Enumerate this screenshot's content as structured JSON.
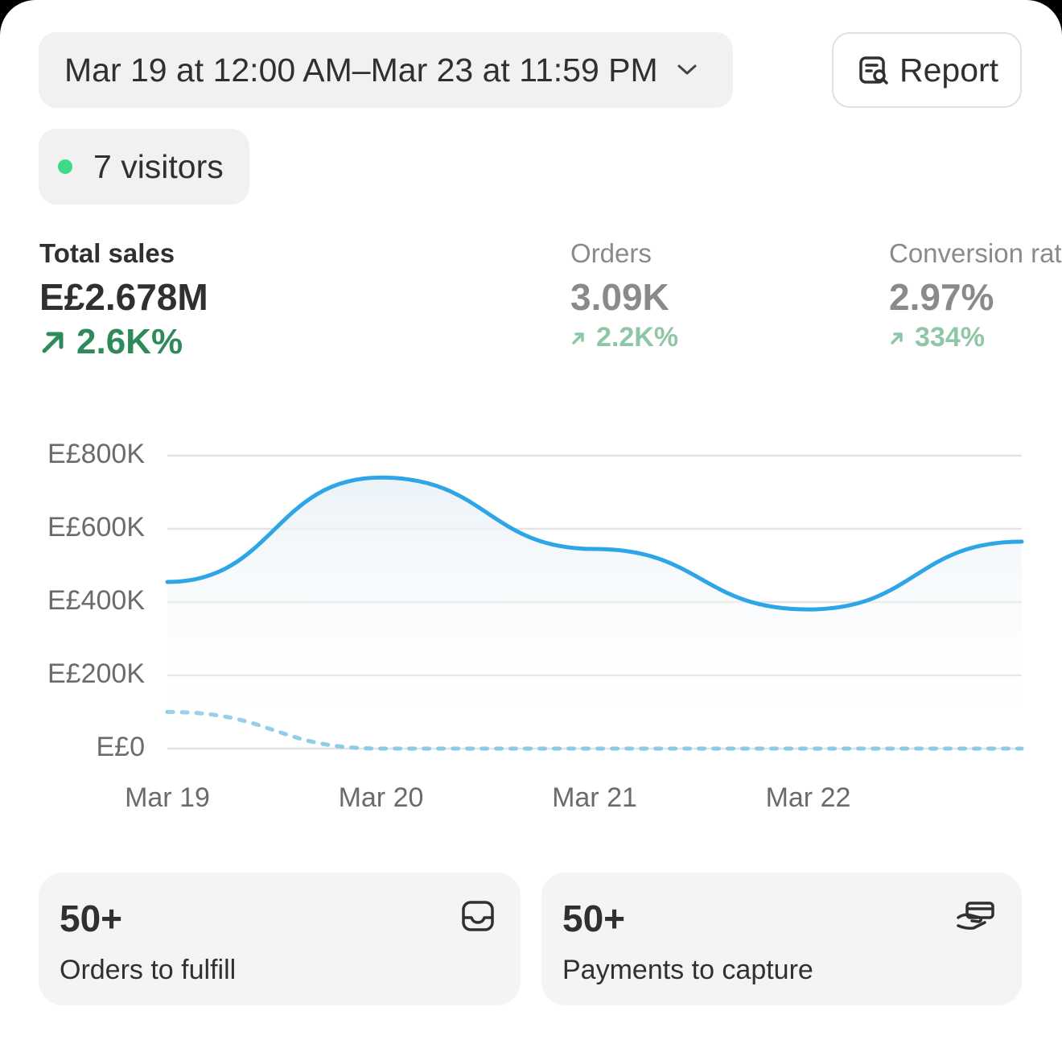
{
  "date_range": "Mar 19 at 12:00 AM–Mar 23 at 11:59 PM",
  "report_button": "Report",
  "visitors": "7 visitors",
  "metrics": [
    {
      "label": "Total sales",
      "value": "E£2.678M",
      "change": "2.6K%"
    },
    {
      "label": "Orders",
      "value": "3.09K",
      "change": "2.2K%"
    },
    {
      "label": "Conversion rate",
      "value": "2.97%",
      "change": "334%"
    }
  ],
  "chart_data": {
    "type": "line",
    "categories": [
      "Mar 19",
      "Mar 20",
      "Mar 21",
      "Mar 22",
      null
    ],
    "series": [
      {
        "color": "#2ea5e6",
        "values": [
          455000,
          740000,
          545000,
          380000,
          565000
        ]
      },
      {
        "color": "#8ccbe8",
        "dashed": true,
        "values": [
          100000,
          0,
          0,
          0,
          0
        ]
      }
    ],
    "ylim": [
      0,
      800000
    ],
    "yticks": [
      {
        "value": 0,
        "label": "E£0"
      },
      {
        "value": 200000,
        "label": "E£200K"
      },
      {
        "value": 400000,
        "label": "E£400K"
      },
      {
        "value": 600000,
        "label": "E£600K"
      },
      {
        "value": 800000,
        "label": "E£800K"
      }
    ],
    "grid": true
  },
  "cards": [
    {
      "value": "50+",
      "label": "Orders to fulfill"
    },
    {
      "value": "50+",
      "label": "Payments to capture"
    }
  ]
}
